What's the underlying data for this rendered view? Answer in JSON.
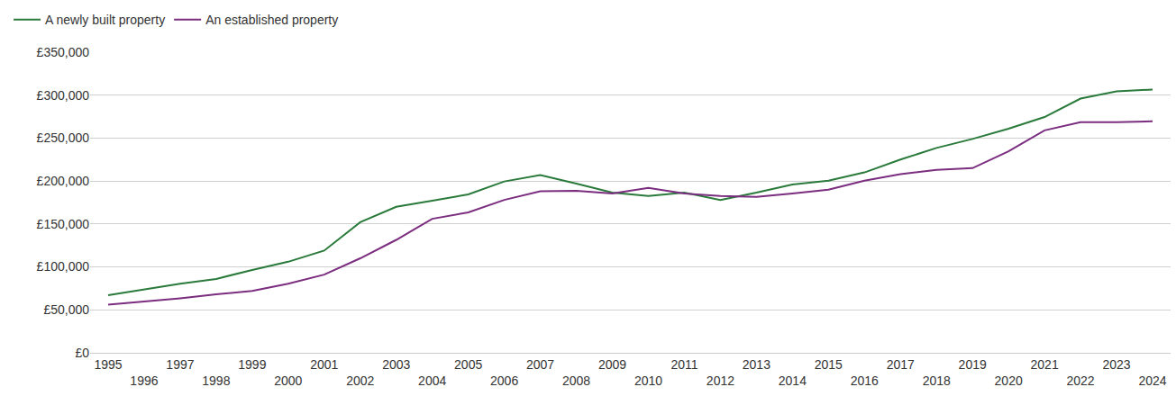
{
  "chart_data": {
    "type": "line",
    "x": [
      1995,
      1996,
      1997,
      1998,
      1999,
      2000,
      2001,
      2002,
      2003,
      2004,
      2005,
      2006,
      2007,
      2008,
      2009,
      2010,
      2011,
      2012,
      2013,
      2014,
      2015,
      2016,
      2017,
      2018,
      2019,
      2020,
      2021,
      2022,
      2023,
      2024
    ],
    "series": [
      {
        "name": "A newly built property",
        "color": "#2a7a3b",
        "values": [
          67000,
          74000,
          80500,
          86000,
          96500,
          106000,
          119000,
          152000,
          170000,
          177000,
          184500,
          199500,
          207000,
          197000,
          186500,
          182500,
          186500,
          178000,
          186500,
          196000,
          200500,
          210000,
          225000,
          238500,
          249000,
          261000,
          274500,
          296000,
          304500,
          306500
        ]
      },
      {
        "name": "An established property",
        "color": "#7b2d7f",
        "values": [
          56000,
          59500,
          63500,
          68000,
          72000,
          80500,
          91000,
          110000,
          131500,
          156000,
          163500,
          178000,
          188000,
          188500,
          185500,
          192000,
          185500,
          182500,
          181500,
          185500,
          190000,
          200500,
          208000,
          213000,
          215000,
          234500,
          259000,
          268500,
          268500,
          269500
        ]
      }
    ],
    "xlim": [
      1994.5,
      2024.5
    ],
    "xticks": [
      1995,
      1996,
      1997,
      1998,
      1999,
      2000,
      2001,
      2002,
      2003,
      2004,
      2005,
      2006,
      2007,
      2008,
      2009,
      2010,
      2011,
      2012,
      2013,
      2014,
      2015,
      2016,
      2017,
      2018,
      2019,
      2020,
      2021,
      2022,
      2023,
      2024
    ],
    "ylim": [
      0,
      350000
    ],
    "yticks": [
      {
        "value": 0,
        "label": "£0"
      },
      {
        "value": 50000,
        "label": "£50,000"
      },
      {
        "value": 100000,
        "label": "£100,000"
      },
      {
        "value": 150000,
        "label": "£150,000"
      },
      {
        "value": 200000,
        "label": "£200,000"
      },
      {
        "value": 250000,
        "label": "£250,000"
      },
      {
        "value": 300000,
        "label": "£300,000"
      },
      {
        "value": 350000,
        "label": "£350,000"
      }
    ],
    "grid": true,
    "legend": "top-left"
  }
}
